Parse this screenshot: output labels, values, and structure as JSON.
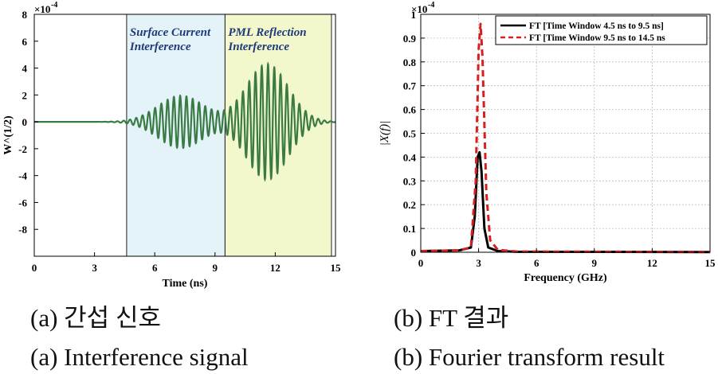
{
  "chart_data": [
    {
      "type": "line",
      "title": "",
      "xlabel": "Time (ns)",
      "ylabel": "W^(1/2)",
      "yscale_label": "×10",
      "yscale_exp": "-4",
      "xlim": [
        0,
        15
      ],
      "ylim": [
        -10,
        8
      ],
      "xticks": [
        0,
        3,
        6,
        9,
        12,
        15
      ],
      "yticks": [
        -8,
        -6,
        -4,
        -2,
        0,
        2,
        4,
        6,
        8
      ],
      "grid": false,
      "regions": [
        {
          "name": "surface-current",
          "x0": 4.6,
          "x1": 9.5,
          "label_line1": "Surface Current",
          "label_line2": "Interference",
          "color": "#e3f3f8"
        },
        {
          "name": "pml-reflection",
          "x0": 9.5,
          "x1": 14.8,
          "label_line1": "PML Reflection",
          "label_line2": "Interference",
          "color": "#f3f8cc"
        }
      ],
      "series": [
        {
          "color": "#3a7a45",
          "signal": {
            "freq_ghz": 3.2,
            "packets": [
              {
                "center": 7.3,
                "sigma": 1.15,
                "amp": 1.95
              },
              {
                "center": 11.6,
                "sigma": 1.05,
                "amp": 4.3
              }
            ]
          }
        }
      ]
    },
    {
      "type": "line",
      "title": "",
      "xlabel": "Frequency (GHz)",
      "ylabel": "|X(f)|",
      "yscale_label": "×10",
      "yscale_exp": "-4",
      "xlim": [
        0,
        15
      ],
      "ylim": [
        0,
        1
      ],
      "xticks": [
        0,
        3,
        6,
        9,
        12,
        15
      ],
      "yticks": [
        "0",
        "0.1",
        "0.2",
        "0.3",
        "0.4",
        "0.5",
        "0.6",
        "0.7",
        "0.8",
        "0.9",
        "1"
      ],
      "grid": true,
      "legend_position": "top-right",
      "series": [
        {
          "name": "FT [Time Window 4.5 ns to 9.5 ns]",
          "color": "#000000",
          "dash": "solid",
          "x": [
            0,
            2.0,
            2.6,
            2.8,
            2.95,
            3.05,
            3.15,
            3.3,
            3.5,
            4.0,
            5.0,
            15
          ],
          "y": [
            0.005,
            0.008,
            0.02,
            0.15,
            0.4,
            0.42,
            0.34,
            0.1,
            0.02,
            0.005,
            0.002,
            0.001
          ]
        },
        {
          "name": "FT [Time Window 9.5 ns to 14.5 ns",
          "color": "#d62020",
          "dash": "dashed",
          "x": [
            0,
            2.0,
            2.6,
            2.85,
            3.0,
            3.1,
            3.2,
            3.4,
            3.6,
            4.0,
            5.0,
            15
          ],
          "y": [
            0.005,
            0.008,
            0.02,
            0.3,
            0.85,
            0.96,
            0.82,
            0.25,
            0.05,
            0.01,
            0.003,
            0.001
          ]
        }
      ]
    }
  ],
  "captions": {
    "a_korean": "(a) 간섭 신호",
    "b_korean": "(b) FT 결과",
    "a_english": "(a) Interference signal",
    "b_english": "(b) Fourier transform result"
  }
}
